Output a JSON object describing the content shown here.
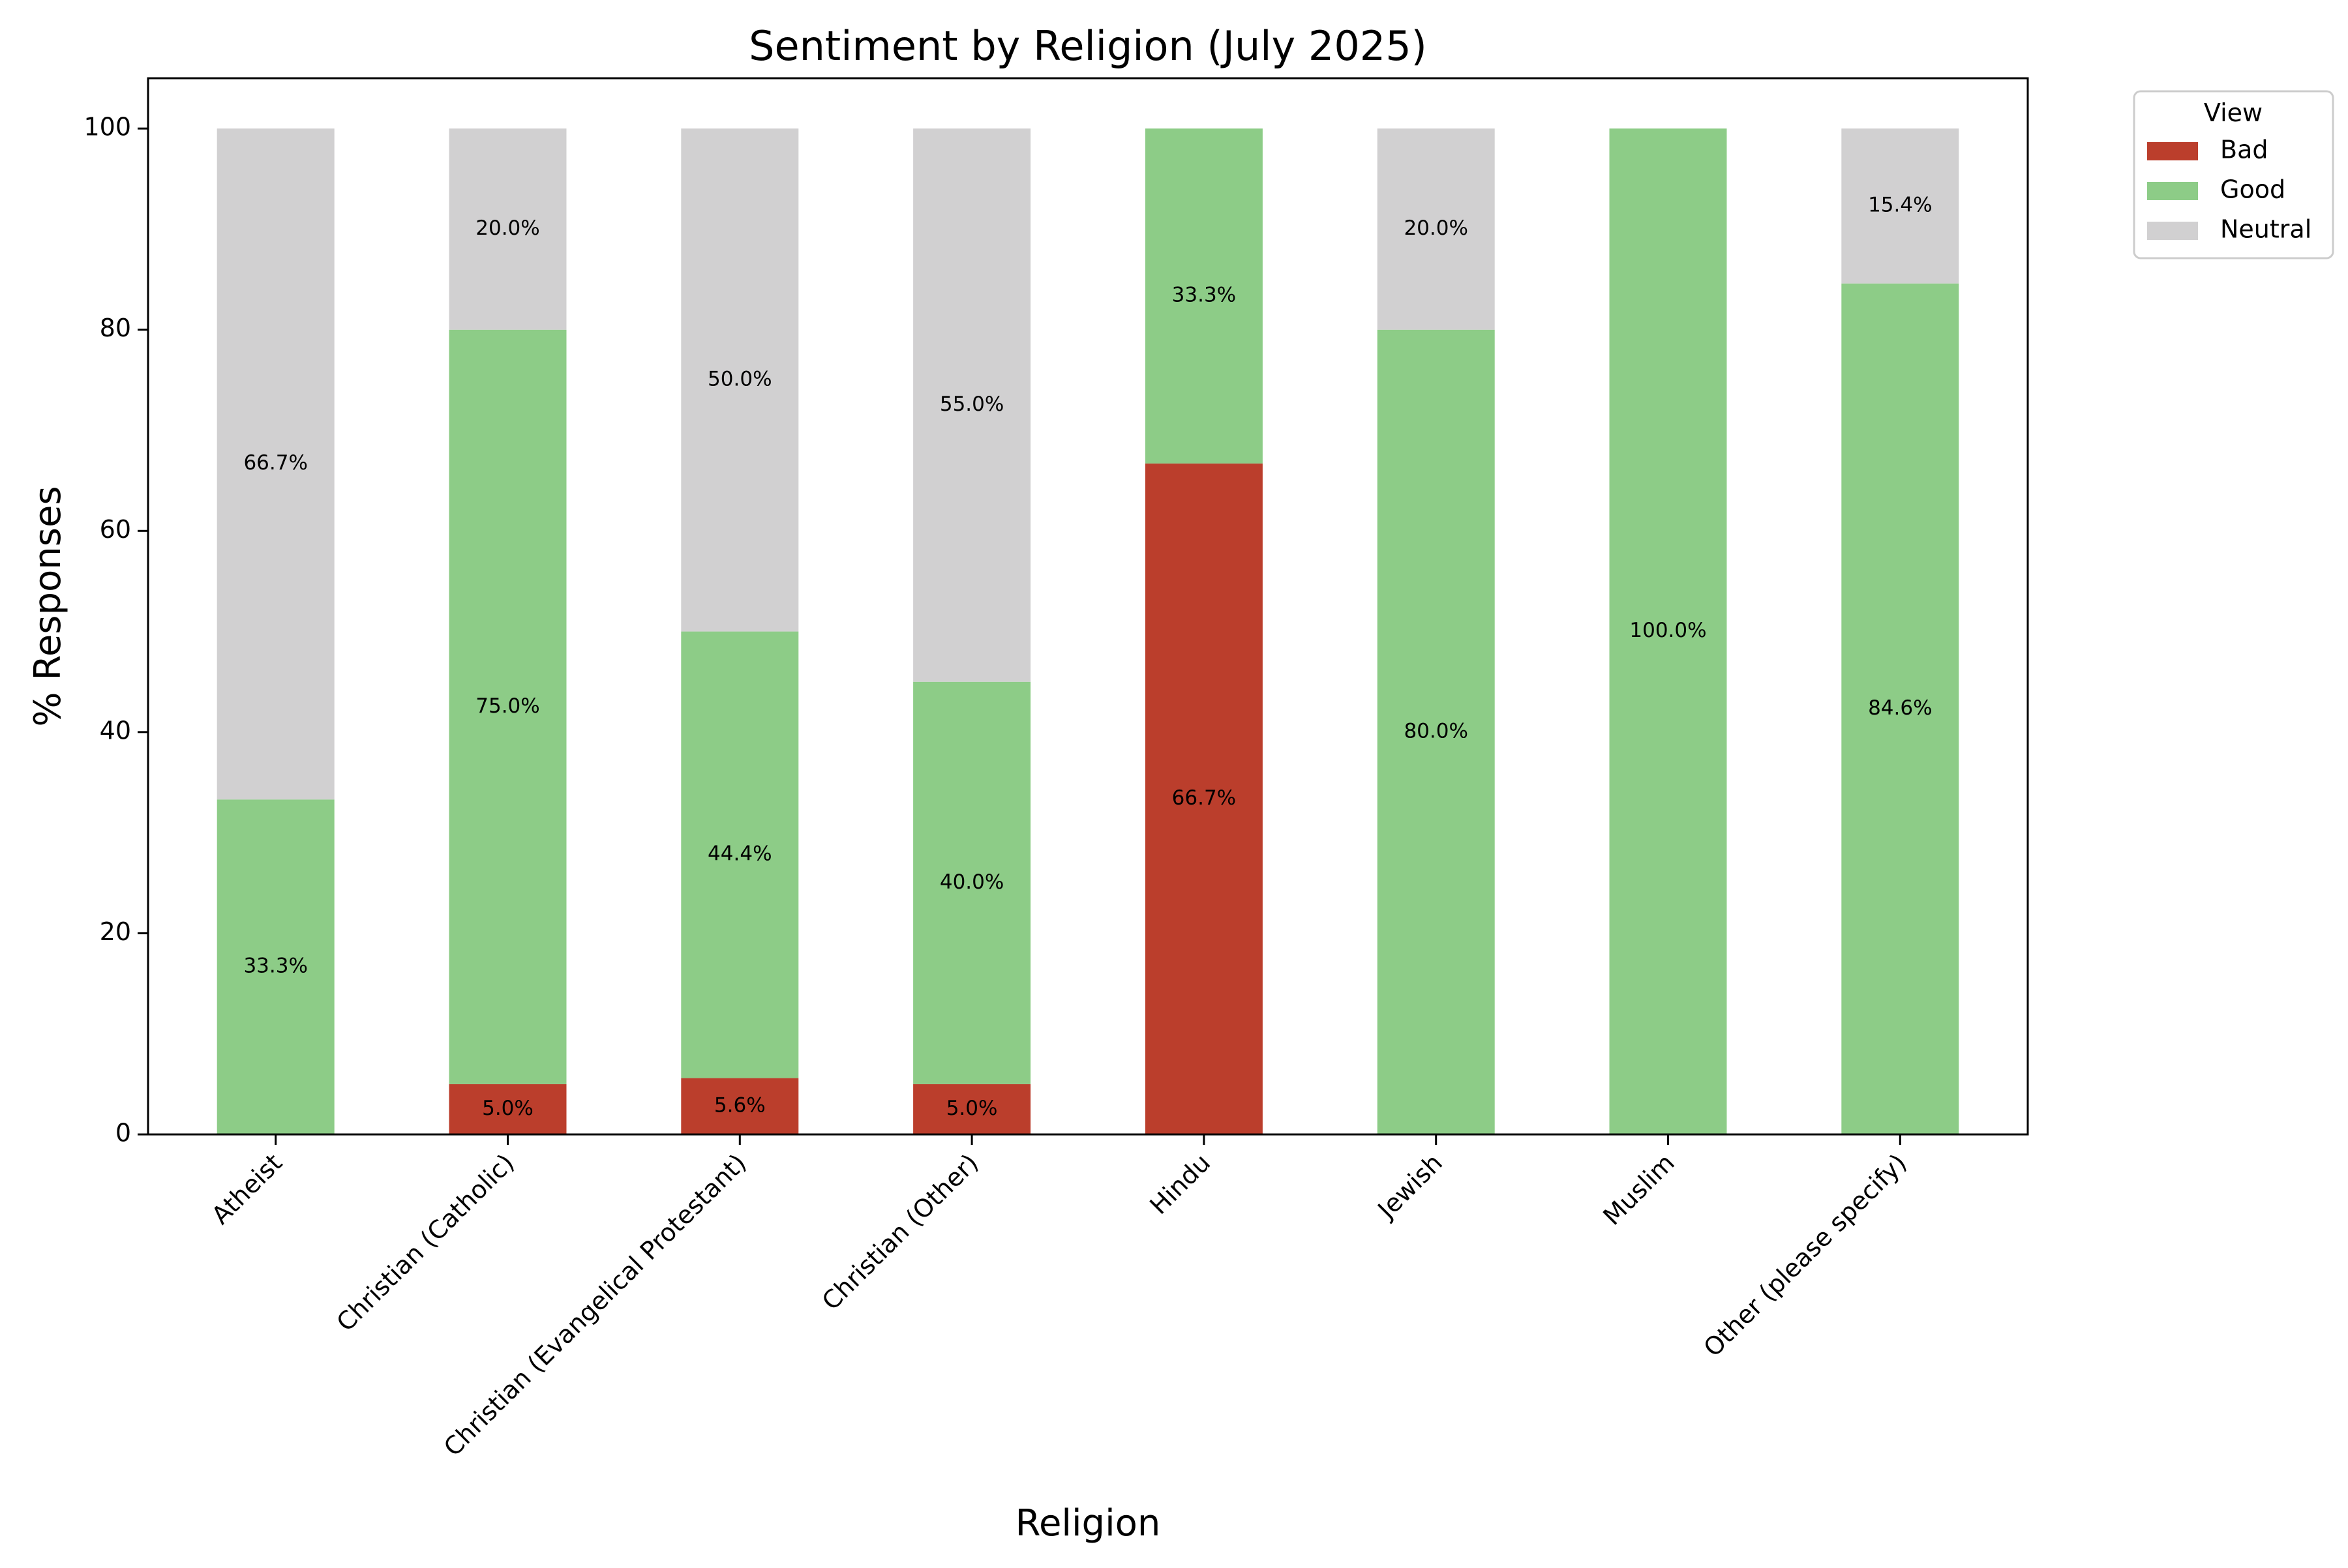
{
  "chart_data": {
    "type": "bar",
    "stacked": true,
    "title": "Sentiment by Religion (July 2025)",
    "xlabel": "Religion",
    "ylabel": "% Responses",
    "ylim": [
      0,
      105
    ],
    "yticks": [
      "0",
      "20",
      "40",
      "60",
      "80",
      "100"
    ],
    "grid": false,
    "legend": {
      "title": "View",
      "placement": "outside top-right"
    },
    "categories": [
      "Atheist",
      "Christian (Catholic)",
      "Christian (Evangelical Protestant)",
      "Christian (Other)",
      "Hindu",
      "Jewish",
      "Muslim",
      "Other (please specify)"
    ],
    "series": [
      {
        "name": "Bad",
        "color": "#bb3e2c",
        "values": [
          0,
          5.0,
          5.6,
          5.0,
          66.7,
          0,
          0,
          0
        ],
        "labels": [
          "",
          "5.0%",
          "5.6%",
          "5.0%",
          "66.7%",
          "",
          "",
          ""
        ]
      },
      {
        "name": "Good",
        "color": "#8dcc87",
        "values": [
          33.3,
          75.0,
          44.4,
          40.0,
          33.3,
          80.0,
          100.0,
          84.6
        ],
        "labels": [
          "33.3%",
          "75.0%",
          "44.4%",
          "40.0%",
          "33.3%",
          "80.0%",
          "100.0%",
          "84.6%"
        ]
      },
      {
        "name": "Neutral",
        "color": "#d1d0d1",
        "values": [
          66.7,
          20.0,
          50.0,
          55.0,
          0,
          20.0,
          0,
          15.4
        ],
        "labels": [
          "66.7%",
          "20.0%",
          "50.0%",
          "55.0%",
          "",
          "20.0%",
          "",
          "15.4%"
        ]
      }
    ]
  }
}
